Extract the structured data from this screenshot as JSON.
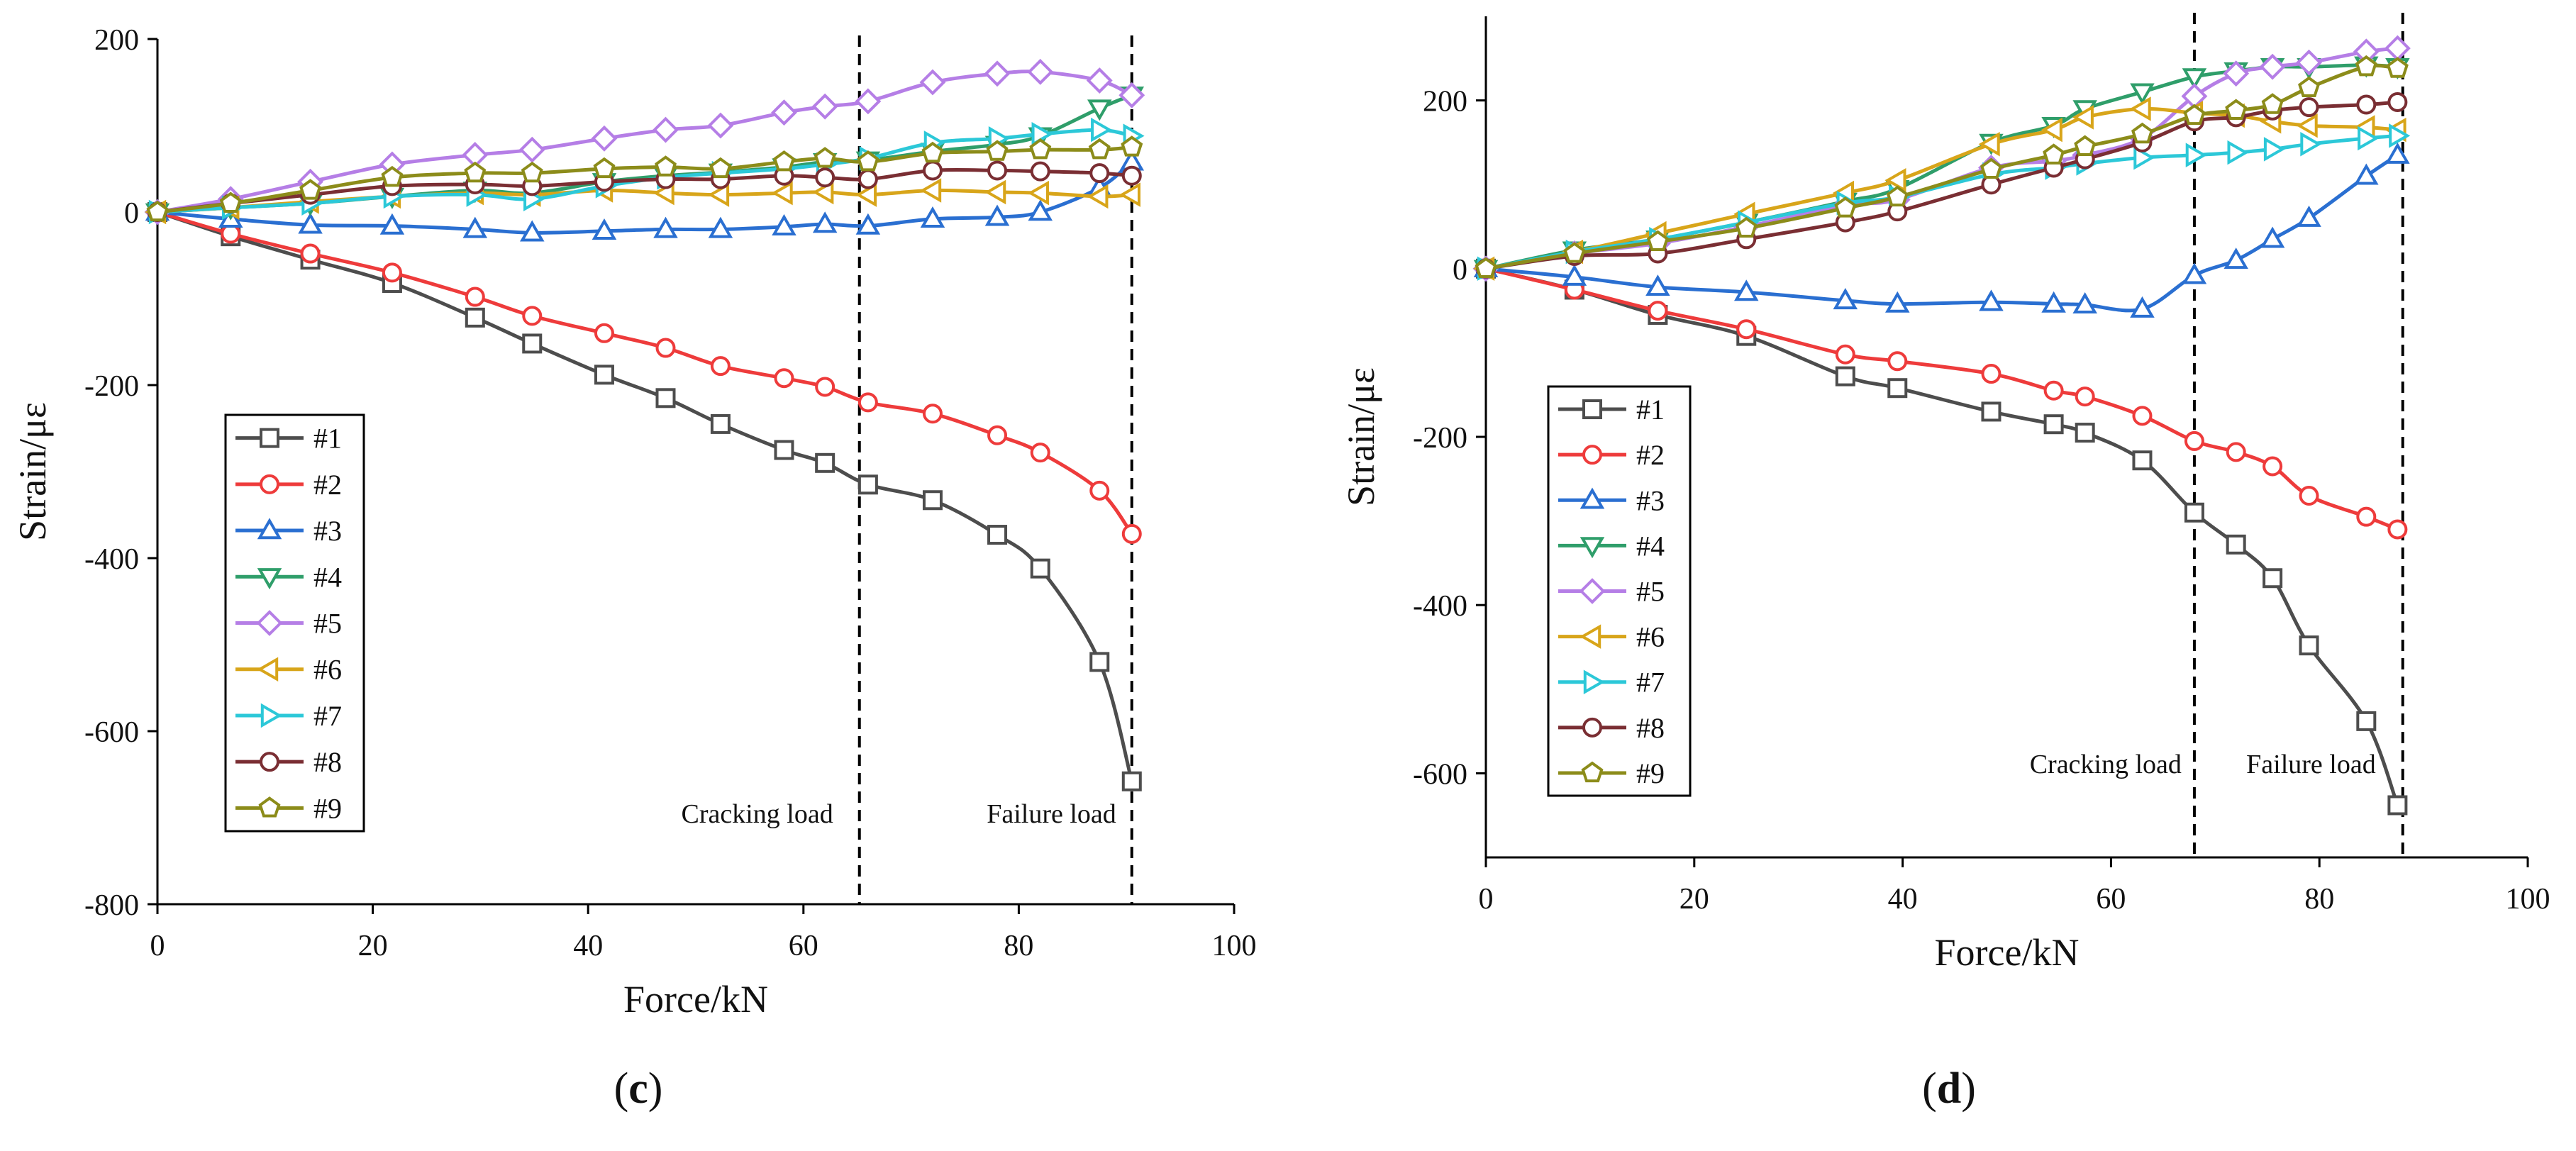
{
  "chart_data": [
    {
      "type": "line",
      "panel_label": "c",
      "xlabel": "Force/kN",
      "ylabel": "Strain/με",
      "xlim": [
        0,
        100
      ],
      "ylim": [
        -800,
        200
      ],
      "xticks": [
        0,
        20,
        40,
        60,
        80,
        100
      ],
      "yticks": [
        -800,
        -600,
        -400,
        -200,
        0,
        200
      ],
      "grid": false,
      "legend_position": "left",
      "vlines": [
        {
          "x": 65.2,
          "label": "Cracking load"
        },
        {
          "x": 90.5,
          "label": "Failure load"
        }
      ],
      "series": [
        {
          "name": "#1",
          "color": "#4d4d4d",
          "marker": "square",
          "x": [
            0,
            6.8,
            14.2,
            21.8,
            29.5,
            34.8,
            41.5,
            47.2,
            52.3,
            58.2,
            62.0,
            66.0,
            72.0,
            78.0,
            82.0,
            87.5,
            90.5
          ],
          "y": [
            0,
            -28,
            -55,
            -82,
            -122,
            -152,
            -188,
            -215,
            -245,
            -275,
            -290,
            -315,
            -333,
            -373,
            -412,
            -520,
            -658
          ]
        },
        {
          "name": "#2",
          "color": "#ee3b3b",
          "marker": "circle",
          "x": [
            0,
            6.8,
            14.2,
            21.8,
            29.5,
            34.8,
            41.5,
            47.2,
            52.3,
            58.2,
            62.0,
            66.0,
            72.0,
            78.0,
            82.0,
            87.5,
            90.5
          ],
          "y": [
            0,
            -25,
            -48,
            -70,
            -98,
            -120,
            -140,
            -157,
            -178,
            -192,
            -202,
            -220,
            -233,
            -258,
            -278,
            -322,
            -372
          ]
        },
        {
          "name": "#3",
          "color": "#2a6fd1",
          "marker": "triangle-up",
          "x": [
            0,
            6.8,
            14.2,
            21.8,
            29.5,
            34.8,
            41.5,
            47.2,
            52.3,
            58.2,
            62.0,
            66.0,
            72.0,
            78.0,
            82.0,
            87.5,
            90.5
          ],
          "y": [
            0,
            -8,
            -15,
            -16,
            -20,
            -24,
            -22,
            -20,
            -20,
            -17,
            -14,
            -16,
            -8,
            -6,
            0,
            28,
            58
          ]
        },
        {
          "name": "#4",
          "color": "#2f9e6a",
          "marker": "triangle-down",
          "x": [
            0,
            6.8,
            14.2,
            21.8,
            29.5,
            34.8,
            41.5,
            47.2,
            52.3,
            58.2,
            62.0,
            66.0,
            72.0,
            78.0,
            82.0,
            87.5,
            90.5
          ],
          "y": [
            0,
            5,
            10,
            18,
            25,
            22,
            35,
            42,
            46,
            52,
            58,
            60,
            70,
            78,
            88,
            120,
            135
          ]
        },
        {
          "name": "#5",
          "color": "#b57ee6",
          "marker": "diamond",
          "x": [
            0,
            6.8,
            14.2,
            21.8,
            29.5,
            34.8,
            41.5,
            47.2,
            52.3,
            58.2,
            62.0,
            66.0,
            72.0,
            78.0,
            82.0,
            87.5,
            90.5
          ],
          "y": [
            0,
            15,
            35,
            55,
            66,
            72,
            85,
            95,
            100,
            115,
            122,
            128,
            150,
            160,
            162,
            152,
            135
          ]
        },
        {
          "name": "#6",
          "color": "#d8a51a",
          "marker": "triangle-left",
          "x": [
            0,
            6.8,
            14.2,
            21.8,
            29.5,
            34.8,
            41.5,
            47.2,
            52.3,
            58.2,
            62.0,
            66.0,
            72.0,
            78.0,
            82.0,
            87.5,
            90.5
          ],
          "y": [
            0,
            5,
            12,
            18,
            22,
            20,
            25,
            22,
            20,
            22,
            23,
            20,
            25,
            23,
            22,
            18,
            20
          ]
        },
        {
          "name": "#7",
          "color": "#2cc8d8",
          "marker": "triangle-right",
          "x": [
            0,
            6.8,
            14.2,
            21.8,
            29.5,
            34.8,
            41.5,
            47.2,
            52.3,
            58.2,
            62.0,
            66.0,
            72.0,
            78.0,
            82.0,
            87.5,
            90.5
          ],
          "y": [
            0,
            5,
            10,
            18,
            20,
            15,
            30,
            40,
            45,
            50,
            55,
            62,
            80,
            85,
            90,
            95,
            88
          ]
        },
        {
          "name": "#8",
          "color": "#7a2e33",
          "marker": "circle",
          "x": [
            0,
            6.8,
            14.2,
            21.8,
            29.5,
            34.8,
            41.5,
            47.2,
            52.3,
            58.2,
            62.0,
            66.0,
            72.0,
            78.0,
            82.0,
            87.5,
            90.5
          ],
          "y": [
            0,
            10,
            20,
            30,
            32,
            30,
            35,
            38,
            38,
            42,
            40,
            38,
            48,
            48,
            47,
            45,
            42
          ]
        },
        {
          "name": "#9",
          "color": "#8c8c1a",
          "marker": "pentagon",
          "x": [
            0,
            6.8,
            14.2,
            21.8,
            29.5,
            34.8,
            41.5,
            47.2,
            52.3,
            58.2,
            62.0,
            66.0,
            72.0,
            78.0,
            82.0,
            87.5,
            90.5
          ],
          "y": [
            0,
            10,
            25,
            40,
            45,
            45,
            50,
            52,
            50,
            58,
            62,
            58,
            68,
            70,
            72,
            72,
            75
          ]
        }
      ]
    },
    {
      "type": "line",
      "panel_label": "d",
      "xlabel": "Force/kN",
      "ylabel": "Strain/με",
      "xlim": [
        0,
        100
      ],
      "ylim": [
        -700,
        300
      ],
      "xticks": [
        0,
        20,
        40,
        60,
        80,
        100
      ],
      "yticks": [
        -600,
        -400,
        -200,
        0,
        200
      ],
      "grid": false,
      "legend_position": "left",
      "vlines": [
        {
          "x": 68,
          "label": "Cracking load"
        },
        {
          "x": 88,
          "label": "Failure load"
        }
      ],
      "series": [
        {
          "name": "#1",
          "color": "#4d4d4d",
          "marker": "square",
          "x": [
            0,
            8.5,
            16.5,
            25.0,
            34.5,
            39.5,
            48.5,
            54.5,
            57.5,
            63.0,
            68.0,
            72.0,
            75.5,
            79.0,
            84.5,
            87.5
          ],
          "y": [
            0,
            -25,
            -55,
            -80,
            -128,
            -142,
            -170,
            -185,
            -195,
            -228,
            -290,
            -328,
            -368,
            -448,
            -538,
            -638
          ]
        },
        {
          "name": "#2",
          "color": "#ee3b3b",
          "marker": "circle",
          "x": [
            0,
            8.5,
            16.5,
            25.0,
            34.5,
            39.5,
            48.5,
            54.5,
            57.5,
            63.0,
            68.0,
            72.0,
            75.5,
            79.0,
            84.5,
            87.5
          ],
          "y": [
            0,
            -25,
            -50,
            -72,
            -102,
            -110,
            -125,
            -145,
            -152,
            -175,
            -205,
            -218,
            -235,
            -270,
            -295,
            -310
          ]
        },
        {
          "name": "#3",
          "color": "#2a6fd1",
          "marker": "triangle-up",
          "x": [
            0,
            8.5,
            16.5,
            25.0,
            34.5,
            39.5,
            48.5,
            54.5,
            57.5,
            63.0,
            68.0,
            72.0,
            75.5,
            79.0,
            84.5,
            87.5
          ],
          "y": [
            0,
            -10,
            -22,
            -28,
            -38,
            -42,
            -40,
            -42,
            -43,
            -48,
            -8,
            10,
            35,
            60,
            110,
            135
          ]
        },
        {
          "name": "#4",
          "color": "#2f9e6a",
          "marker": "triangle-down",
          "x": [
            0,
            8.5,
            16.5,
            25.0,
            34.5,
            39.5,
            48.5,
            54.5,
            57.5,
            63.0,
            68.0,
            72.0,
            75.5,
            79.0,
            84.5,
            87.5
          ],
          "y": [
            0,
            22,
            35,
            55,
            80,
            95,
            150,
            170,
            190,
            210,
            228,
            235,
            240,
            240,
            242,
            240
          ]
        },
        {
          "name": "#5",
          "color": "#b57ee6",
          "marker": "diamond",
          "x": [
            0,
            8.5,
            16.5,
            25.0,
            34.5,
            39.5,
            48.5,
            54.5,
            57.5,
            63.0,
            68.0,
            72.0,
            75.5,
            79.0,
            84.5,
            87.5
          ],
          "y": [
            0,
            18,
            30,
            50,
            75,
            82,
            120,
            128,
            135,
            155,
            205,
            232,
            240,
            245,
            258,
            262
          ]
        },
        {
          "name": "#6",
          "color": "#d8a51a",
          "marker": "triangle-left",
          "x": [
            0,
            8.5,
            16.5,
            25.0,
            34.5,
            39.5,
            48.5,
            54.5,
            57.5,
            63.0,
            68.0,
            72.0,
            75.5,
            79.0,
            84.5,
            87.5
          ],
          "y": [
            0,
            20,
            42,
            65,
            90,
            105,
            148,
            165,
            180,
            190,
            185,
            182,
            175,
            170,
            168,
            165
          ]
        },
        {
          "name": "#7",
          "color": "#2cc8d8",
          "marker": "triangle-right",
          "x": [
            0,
            8.5,
            16.5,
            25.0,
            34.5,
            39.5,
            48.5,
            54.5,
            57.5,
            63.0,
            68.0,
            72.0,
            75.5,
            79.0,
            84.5,
            87.5
          ],
          "y": [
            0,
            20,
            35,
            55,
            78,
            85,
            112,
            120,
            125,
            132,
            135,
            138,
            142,
            148,
            155,
            158
          ]
        },
        {
          "name": "#8",
          "color": "#7a2e33",
          "marker": "circle",
          "x": [
            0,
            8.5,
            16.5,
            25.0,
            34.5,
            39.5,
            48.5,
            54.5,
            57.5,
            63.0,
            68.0,
            72.0,
            75.5,
            79.0,
            84.5,
            87.5
          ],
          "y": [
            0,
            15,
            18,
            35,
            55,
            68,
            100,
            120,
            130,
            150,
            175,
            180,
            188,
            192,
            195,
            198
          ]
        },
        {
          "name": "#9",
          "color": "#8c8c1a",
          "marker": "pentagon",
          "x": [
            0,
            8.5,
            16.5,
            25.0,
            34.5,
            39.5,
            48.5,
            54.5,
            57.5,
            63.0,
            68.0,
            72.0,
            75.5,
            79.0,
            84.5,
            87.5
          ],
          "y": [
            0,
            18,
            32,
            48,
            72,
            85,
            118,
            135,
            145,
            160,
            182,
            188,
            195,
            215,
            240,
            238
          ]
        }
      ]
    }
  ]
}
